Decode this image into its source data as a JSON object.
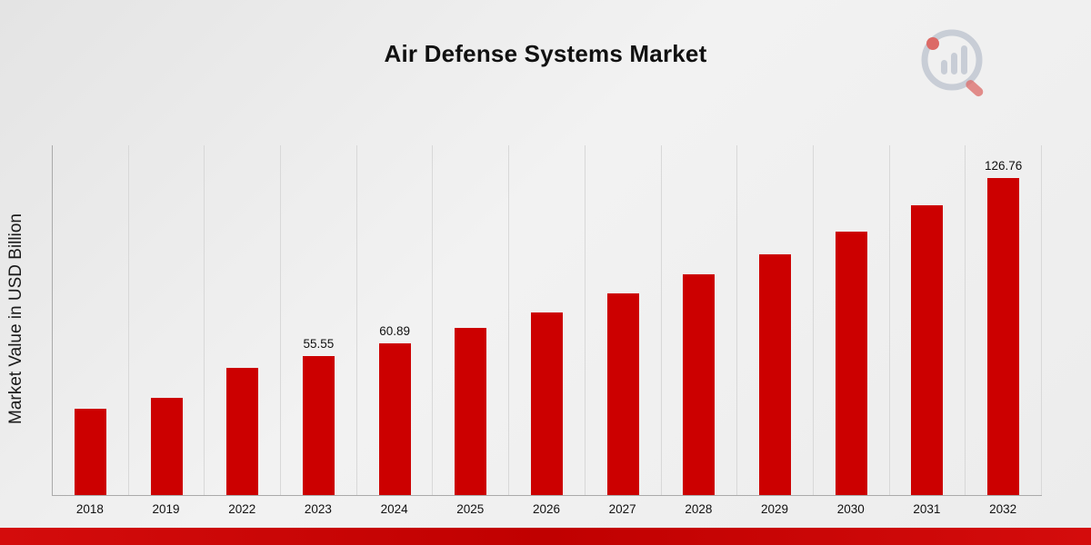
{
  "page": {
    "title": "Air Defense Systems Market"
  },
  "chart_data": {
    "type": "bar",
    "title": "Air Defense Systems Market",
    "xlabel": "",
    "ylabel": "Market Value in USD Billion",
    "ylim": [
      0,
      140
    ],
    "grid": "vertical",
    "legend": "none",
    "bar_color": "#cc0000",
    "categories": [
      "2018",
      "2019",
      "2022",
      "2023",
      "2024",
      "2025",
      "2026",
      "2027",
      "2028",
      "2029",
      "2030",
      "2031",
      "2032"
    ],
    "values": [
      34.5,
      38.9,
      50.8,
      55.55,
      60.89,
      66.9,
      73.2,
      80.9,
      88.4,
      96.5,
      105.6,
      116.0,
      126.76
    ],
    "data_labels": [
      "",
      "",
      "",
      "55.55",
      "60.89",
      "",
      "",
      "",
      "",
      "",
      "",
      "",
      "126.76"
    ]
  },
  "branding": {
    "logo_icon": "market-research-logo-icon",
    "accent_color": "#cc0000",
    "logo_gray": "#c2c8d2",
    "logo_red": "#d9534f"
  }
}
